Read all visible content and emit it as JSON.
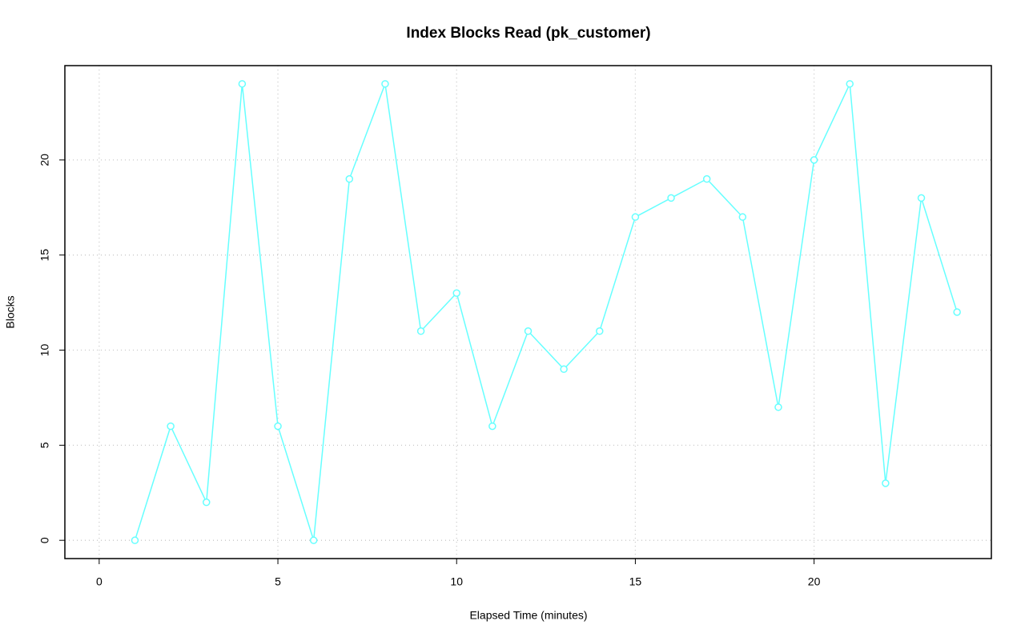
{
  "chart_data": {
    "type": "line",
    "title": "Index Blocks Read (pk_customer)",
    "x_label": "Elapsed Time (minutes)",
    "y_label": "Blocks",
    "x": [
      1,
      2,
      3,
      4,
      5,
      6,
      7,
      8,
      9,
      10,
      11,
      12,
      13,
      14,
      15,
      16,
      17,
      18,
      19,
      20,
      21,
      22,
      23,
      24
    ],
    "series": [
      {
        "name": "Blocks",
        "color": "#66ffff",
        "values": [
          0,
          6,
          2,
          24,
          6,
          0,
          19,
          24,
          11,
          13,
          6,
          11,
          9,
          11,
          17,
          18,
          19,
          17,
          7,
          20,
          24,
          3,
          18,
          12
        ]
      }
    ],
    "xlim": [
      -0.96,
      24.96
    ],
    "xticks": [
      0,
      5,
      10,
      15,
      20
    ],
    "ylim": [
      -0.96,
      24.96
    ],
    "yticks": [
      0,
      5,
      10,
      15,
      20
    ],
    "grid": true,
    "markers": "open-circle"
  }
}
